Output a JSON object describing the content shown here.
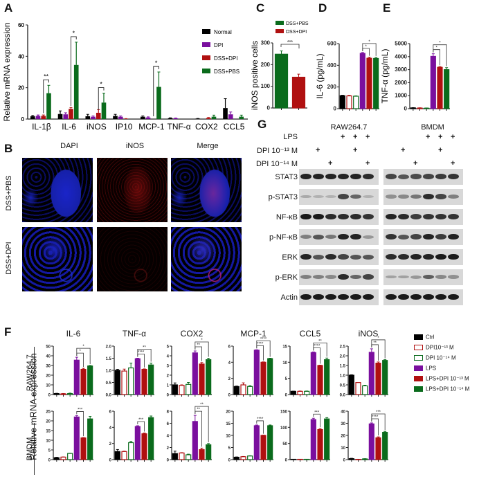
{
  "panels": {
    "A": "A",
    "B": "B",
    "C": "C",
    "D": "D",
    "E": "E",
    "F": "F",
    "G": "G"
  },
  "colors": {
    "normal": "#000000",
    "dpi": "#7a0f9e",
    "dss_dpi": "#b01010",
    "dss_pbs": "#0a6b1c",
    "ctrl": "#000000",
    "lps": "#7a0f9e",
    "lps_dpi13": "#b01010",
    "lps_dpi14": "#0a6b1c"
  },
  "chart_data": [
    {
      "id": "A",
      "type": "bar",
      "title": "",
      "ylabel": "Relative mRNA expression",
      "ylim": [
        0,
        60
      ],
      "yticks": [
        0,
        20,
        40,
        60
      ],
      "categories": [
        "IL-1β",
        "IL-6",
        "iNOS",
        "IP10",
        "MCP-1",
        "TNF-α",
        "COX2",
        "CCL5"
      ],
      "legend": [
        "Normal",
        "DPI",
        "DSS+DPI",
        "DSS+PBS"
      ],
      "legend_position": "top-right",
      "series": [
        {
          "name": "Normal",
          "values": [
            1.8,
            3.2,
            1.8,
            2.0,
            1.5,
            0.6,
            0.3,
            7.0
          ],
          "errors": [
            0.5,
            2.0,
            1.2,
            1.0,
            0.5,
            0.2,
            0.1,
            6.0
          ]
        },
        {
          "name": "DPI",
          "values": [
            2.0,
            3.0,
            1.5,
            1.5,
            1.0,
            0.5,
            0.0,
            3.0
          ],
          "errors": [
            0.6,
            1.0,
            0.5,
            0.5,
            0.4,
            0.2,
            0.0,
            1.5
          ]
        },
        {
          "name": "DSS+DPI",
          "values": [
            2.0,
            6.5,
            4.0,
            0.2,
            0.0,
            0.0,
            0.7,
            0.0
          ],
          "errors": [
            0.6,
            0.8,
            2.0,
            0.1,
            0.0,
            0.0,
            0.3,
            0.0
          ]
        },
        {
          "name": "DSS+PBS",
          "values": [
            16.5,
            34.5,
            10.5,
            0.0,
            20.5,
            0.0,
            1.5,
            1.5
          ],
          "errors": [
            5.0,
            14.5,
            6.0,
            0.0,
            9.5,
            0.0,
            1.0,
            1.0
          ]
        }
      ],
      "annotations": [
        {
          "category": "IL-1β",
          "text": "**"
        },
        {
          "category": "IL-6",
          "text": "*"
        },
        {
          "category": "iNOS",
          "text": "*"
        },
        {
          "category": "MCP-1",
          "text": "*"
        }
      ]
    },
    {
      "id": "C",
      "type": "bar",
      "ylabel": "iNOS positive cells",
      "ylim": [
        0,
        300
      ],
      "yticks": [
        0,
        100,
        200,
        300
      ],
      "categories": [
        "DSS+PBS",
        "DSS+DPI"
      ],
      "legend": [
        "DSS+PBS",
        "DSS+DPI"
      ],
      "values": [
        248,
        142
      ],
      "errors": [
        15,
        14
      ],
      "annotations": [
        {
          "between": [
            "DSS+PBS",
            "DSS+DPI"
          ],
          "text": "***"
        }
      ]
    },
    {
      "id": "D",
      "type": "bar",
      "ylabel": "IL-6 (pg/mL)",
      "ylim": [
        0,
        600
      ],
      "yticks": [
        0,
        200,
        400,
        600
      ],
      "categories": [
        "Ctrl",
        "DPI 10^-13 M",
        "DPI 10^-14 M",
        "LPS",
        "LPS+DPI 10^-13 M",
        "LPS+DPI 10^-14 M"
      ],
      "values": [
        120,
        118,
        115,
        510,
        465,
        463
      ],
      "errors": [
        4,
        5,
        3,
        8,
        10,
        10
      ],
      "annotations": [
        {
          "between": [
            "LPS",
            "LPS+DPI 10^-13 M"
          ],
          "text": "*"
        },
        {
          "between": [
            "LPS",
            "LPS+DPI 10^-14 M"
          ],
          "text": "*"
        }
      ]
    },
    {
      "id": "E",
      "type": "bar",
      "ylabel": "TNF-α (pg/mL)",
      "ylim": [
        0,
        5000
      ],
      "yticks": [
        0,
        1000,
        2000,
        3000,
        4000,
        5000
      ],
      "categories": [
        "Ctrl",
        "DPI 10^-13 M",
        "DPI 10^-14 M",
        "LPS",
        "LPS+DPI 10^-13 M",
        "LPS+DPI 10^-14 M"
      ],
      "values": [
        60,
        50,
        40,
        4020,
        3180,
        3000
      ],
      "errors": [
        20,
        20,
        15,
        200,
        50,
        150
      ],
      "annotations": [
        {
          "between": [
            "LPS",
            "LPS+DPI 10^-13 M"
          ],
          "text": "*"
        },
        {
          "between": [
            "LPS",
            "LPS+DPI 10^-14 M"
          ],
          "text": "*"
        }
      ]
    },
    {
      "id": "F-RAW-IL6",
      "type": "bar",
      "title": "IL-6",
      "row": "RAW264.7",
      "ylim": [
        0,
        50
      ],
      "yticks": [
        0,
        10,
        20,
        30,
        40,
        50
      ],
      "values": [
        1.0,
        0.8,
        1.0,
        35.5,
        26.0,
        29.5
      ],
      "errors": [
        0.3,
        0.3,
        0.5,
        3.0,
        1.0,
        0.5
      ],
      "annotations": [
        {
          "text": "*"
        },
        {
          "text": "*"
        }
      ]
    },
    {
      "id": "F-RAW-TNFa",
      "type": "bar",
      "title": "TNF-α",
      "row": "RAW264.7",
      "ylim": [
        0,
        2.0
      ],
      "yticks": [
        0.0,
        0.5,
        1.0,
        1.5,
        2.0
      ],
      "values": [
        1.0,
        0.97,
        1.1,
        1.48,
        1.04,
        1.22
      ],
      "errors": [
        0.04,
        0.08,
        0.2,
        0.02,
        0.02,
        0.08
      ],
      "annotations": [
        {
          "text": "****"
        },
        {
          "text": "**"
        }
      ]
    },
    {
      "id": "F-RAW-COX2",
      "type": "bar",
      "title": "COX2",
      "row": "RAW264.7",
      "ylim": [
        0,
        5
      ],
      "yticks": [
        0,
        1,
        2,
        3,
        4,
        5
      ],
      "values": [
        1.0,
        0.95,
        1.05,
        4.3,
        3.15,
        3.6
      ],
      "errors": [
        0.2,
        0.05,
        0.2,
        0.2,
        0.15,
        0.15
      ],
      "annotations": [
        {
          "text": "**"
        },
        {
          "text": "*"
        }
      ]
    },
    {
      "id": "F-RAW-MCP1",
      "type": "bar",
      "title": "MCP-1",
      "row": "RAW264.7",
      "ylim": [
        0,
        6
      ],
      "yticks": [
        0,
        2,
        4,
        6
      ],
      "values": [
        1.0,
        1.2,
        1.0,
        5.5,
        4.0,
        4.45
      ],
      "errors": [
        0.05,
        0.25,
        0.1,
        0.05,
        0.05,
        0.05
      ],
      "annotations": [
        {
          "text": "****"
        },
        {
          "text": "****"
        }
      ]
    },
    {
      "id": "F-RAW-CCL5",
      "type": "bar",
      "title": "CCL5",
      "row": "RAW264.7",
      "ylim": [
        0,
        15
      ],
      "yticks": [
        0,
        5,
        10,
        15
      ],
      "values": [
        1.0,
        1.0,
        1.0,
        13.0,
        9.0,
        10.8
      ],
      "errors": [
        0.05,
        0.1,
        0.1,
        0.2,
        0.1,
        0.5
      ],
      "annotations": [
        {
          "text": "****"
        },
        {
          "text": "**"
        }
      ]
    },
    {
      "id": "F-RAW-iNOS",
      "type": "bar",
      "title": "iNOS",
      "row": "RAW264.7",
      "ylim": [
        0,
        2.5
      ],
      "yticks": [
        0.0,
        0.5,
        1.0,
        1.5,
        2.0,
        2.5
      ],
      "values": [
        1.0,
        0.62,
        0.45,
        2.18,
        1.62,
        1.76
      ],
      "errors": [
        0.02,
        0.0,
        0.03,
        0.18,
        0.06,
        0.04
      ],
      "annotations": [
        {
          "text": "**"
        },
        {
          "text": "*"
        }
      ]
    },
    {
      "id": "F-BMDM-IL6",
      "type": "bar",
      "row": "BMDM",
      "ylim": [
        0,
        25
      ],
      "yticks": [
        0,
        5,
        10,
        15,
        20,
        25
      ],
      "values": [
        1.0,
        1.3,
        3.2,
        22.0,
        11.2,
        21.0
      ],
      "errors": [
        0.2,
        0.1,
        0.1,
        0.7,
        0.2,
        1.3
      ],
      "annotations": [
        {
          "text": "***"
        }
      ]
    },
    {
      "id": "F-BMDM-TNFa",
      "type": "bar",
      "row": "BMDM",
      "ylim": [
        0,
        6
      ],
      "yticks": [
        0,
        2,
        4,
        6
      ],
      "values": [
        1.0,
        1.0,
        2.1,
        4.1,
        3.2,
        5.2
      ],
      "errors": [
        0.25,
        0.05,
        0.15,
        0.1,
        0.1,
        0.2
      ],
      "annotations": [
        {
          "text": "***"
        }
      ]
    },
    {
      "id": "F-BMDM-COX2",
      "type": "bar",
      "row": "BMDM",
      "ylim": [
        0,
        8
      ],
      "yticks": [
        0,
        2,
        4,
        6,
        8
      ],
      "values": [
        1.0,
        1.1,
        0.8,
        6.3,
        1.65,
        2.45
      ],
      "errors": [
        0.4,
        0.05,
        0.1,
        1.0,
        0.25,
        0.2
      ],
      "annotations": [
        {
          "text": "**"
        },
        {
          "text": "**"
        }
      ]
    },
    {
      "id": "F-BMDM-MCP1",
      "type": "bar",
      "row": "BMDM",
      "ylim": [
        0,
        20
      ],
      "yticks": [
        0,
        5,
        10,
        15,
        20
      ],
      "values": [
        1.0,
        1.2,
        1.5,
        14.0,
        10.0,
        14.0
      ],
      "errors": [
        0.1,
        0.1,
        0.1,
        0.3,
        0.1,
        0.3
      ],
      "annotations": [
        {
          "text": "****"
        }
      ]
    },
    {
      "id": "F-BMDM-CCL5",
      "type": "bar",
      "row": "BMDM",
      "ylim": [
        0,
        150
      ],
      "yticks": [
        0,
        50,
        100,
        150
      ],
      "values": [
        1.0,
        1.0,
        1.0,
        124.0,
        93.0,
        126.0
      ],
      "errors": [
        0.1,
        0.1,
        0.1,
        4.0,
        3.0,
        4.0
      ],
      "annotations": [
        {
          "text": "***"
        }
      ]
    },
    {
      "id": "F-BMDM-iNOS",
      "type": "bar",
      "row": "BMDM",
      "ylim": [
        0,
        40
      ],
      "yticks": [
        0,
        10,
        20,
        30,
        40
      ],
      "values": [
        0.8,
        0.2,
        0.6,
        29.5,
        18.0,
        22.5
      ],
      "errors": [
        0.3,
        0.1,
        0.2,
        0.8,
        0.8,
        0.8
      ],
      "annotations": [
        {
          "text": "****"
        },
        {
          "text": "***"
        }
      ]
    }
  ],
  "panelB": {
    "col_labels": [
      "DAPI",
      "iNOS",
      "Merge"
    ],
    "row_labels": [
      "DSS+PBS",
      "DSS+DPI"
    ]
  },
  "panelC": {
    "legend": [
      "DSS+PBS",
      "DSS+DPI"
    ],
    "ylabel": "iNOS positive cells",
    "sig": "***"
  },
  "panelD": {
    "ylabel": "IL-6 (pg/mL)"
  },
  "panelE": {
    "ylabel": "TNF-α (pg/mL)"
  },
  "panelF": {
    "titles": [
      "IL-6",
      "TNF-α",
      "COX2",
      "MCP-1",
      "CCL5",
      "iNOS"
    ],
    "row_labels": [
      "RAW264.7",
      "BMDM"
    ],
    "ylabel": "Relative mRNA expression",
    "legend": [
      "Ctrl",
      "DPI10⁻¹³ M",
      "DPI 10⁻¹⁴ M",
      "LPS",
      "LPS+DPI 10⁻¹³ M",
      "LPS+DPI 10⁻¹⁴ M"
    ]
  },
  "panelG": {
    "cell_lines": [
      "RAW264.7",
      "BMDM"
    ],
    "treatments": [
      {
        "label": "LPS",
        "marks": [
          false,
          false,
          false,
          true,
          true,
          true
        ]
      },
      {
        "label": "DPI 10⁻¹³ M",
        "marks": [
          false,
          true,
          false,
          false,
          true,
          false
        ]
      },
      {
        "label": "DPI 10⁻¹⁴ M",
        "marks": [
          false,
          false,
          true,
          false,
          false,
          true
        ]
      }
    ],
    "blots": [
      "STAT3",
      "p-STAT3",
      "NF-κB",
      "p-NF-κB",
      "ERK",
      "p-ERK",
      "Actin"
    ],
    "plus": "+"
  }
}
